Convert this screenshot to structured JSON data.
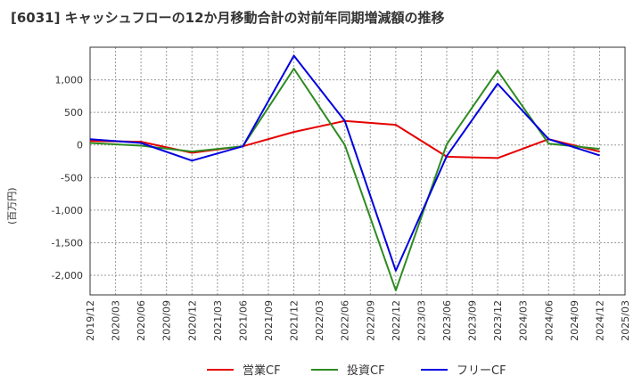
{
  "title": "[6031]  キャッシュフローの12か月移動合計の対前年同期増減額の推移",
  "chart_data": {
    "type": "line",
    "ylabel": "(百万円)",
    "ylim": [
      -2300,
      1500
    ],
    "yticks": [
      1000,
      500,
      0,
      -500,
      -1000,
      -1500,
      -2000
    ],
    "ytick_labels": [
      "1,000",
      "500",
      "0",
      "-500",
      "-1,000",
      "-1,500",
      "-2,000"
    ],
    "x": [
      "2019/12",
      "2020/03",
      "2020/06",
      "2020/09",
      "2020/12",
      "2021/03",
      "2021/06",
      "2021/09",
      "2021/12",
      "2022/03",
      "2022/06",
      "2022/09",
      "2022/12",
      "2023/03",
      "2023/06",
      "2023/09",
      "2023/12",
      "2024/03",
      "2024/06",
      "2024/09",
      "2024/12",
      "2025/03"
    ],
    "grid": true,
    "legend_position": "bottom",
    "series": [
      {
        "name": "営業CF",
        "color": "#e60000",
        "points": [
          [
            "2019/12",
            60
          ],
          [
            "2020/06",
            50
          ],
          [
            "2020/12",
            -120
          ],
          [
            "2021/06",
            -20
          ],
          [
            "2021/12",
            200
          ],
          [
            "2022/06",
            370
          ],
          [
            "2022/12",
            310
          ],
          [
            "2023/06",
            -180
          ],
          [
            "2023/12",
            -200
          ],
          [
            "2024/06",
            90
          ],
          [
            "2024/12",
            -100
          ]
        ]
      },
      {
        "name": "投資CF",
        "color": "#2e8b22",
        "points": [
          [
            "2019/12",
            30
          ],
          [
            "2020/06",
            -10
          ],
          [
            "2020/12",
            -100
          ],
          [
            "2021/06",
            -20
          ],
          [
            "2021/12",
            1170
          ],
          [
            "2022/06",
            0
          ],
          [
            "2022/12",
            -2230
          ],
          [
            "2023/06",
            10
          ],
          [
            "2023/12",
            1140
          ],
          [
            "2024/06",
            20
          ],
          [
            "2024/12",
            -60
          ]
        ]
      },
      {
        "name": "フリーCF",
        "color": "#0000e0",
        "points": [
          [
            "2019/12",
            90
          ],
          [
            "2020/06",
            30
          ],
          [
            "2020/12",
            -240
          ],
          [
            "2021/06",
            -20
          ],
          [
            "2021/12",
            1370
          ],
          [
            "2022/06",
            370
          ],
          [
            "2022/12",
            -1930
          ],
          [
            "2023/06",
            -170
          ],
          [
            "2023/12",
            940
          ],
          [
            "2024/06",
            90
          ],
          [
            "2024/12",
            -160
          ]
        ]
      }
    ]
  }
}
